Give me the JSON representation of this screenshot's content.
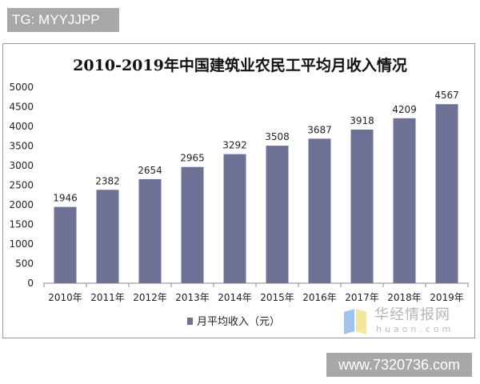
{
  "tag_label": "TG: MYYJJPP",
  "site_label": "www.7320736.com",
  "watermark": {
    "cn": "华经情报网",
    "en": "huaon.com"
  },
  "colors": {
    "bar": "#6e7196",
    "axis": "#888888",
    "grid": "#d9d9d9"
  },
  "chart_data": {
    "type": "bar",
    "title": "2010-2019年中国建筑业农民工平均月收入情况",
    "categories": [
      "2010年",
      "2011年",
      "2012年",
      "2013年",
      "2014年",
      "2015年",
      "2016年",
      "2017年",
      "2018年",
      "2019年"
    ],
    "series": [
      {
        "name": "月平均收入（元）",
        "values": [
          1946,
          2382,
          2654,
          2965,
          3292,
          3508,
          3687,
          3918,
          4209,
          4567
        ]
      }
    ],
    "ylim": [
      0,
      5000
    ],
    "yticks": [
      0,
      500,
      1000,
      1500,
      2000,
      2500,
      3000,
      3500,
      4000,
      4500,
      5000
    ],
    "grid": false,
    "legend": "bottom",
    "data_labels": true
  }
}
